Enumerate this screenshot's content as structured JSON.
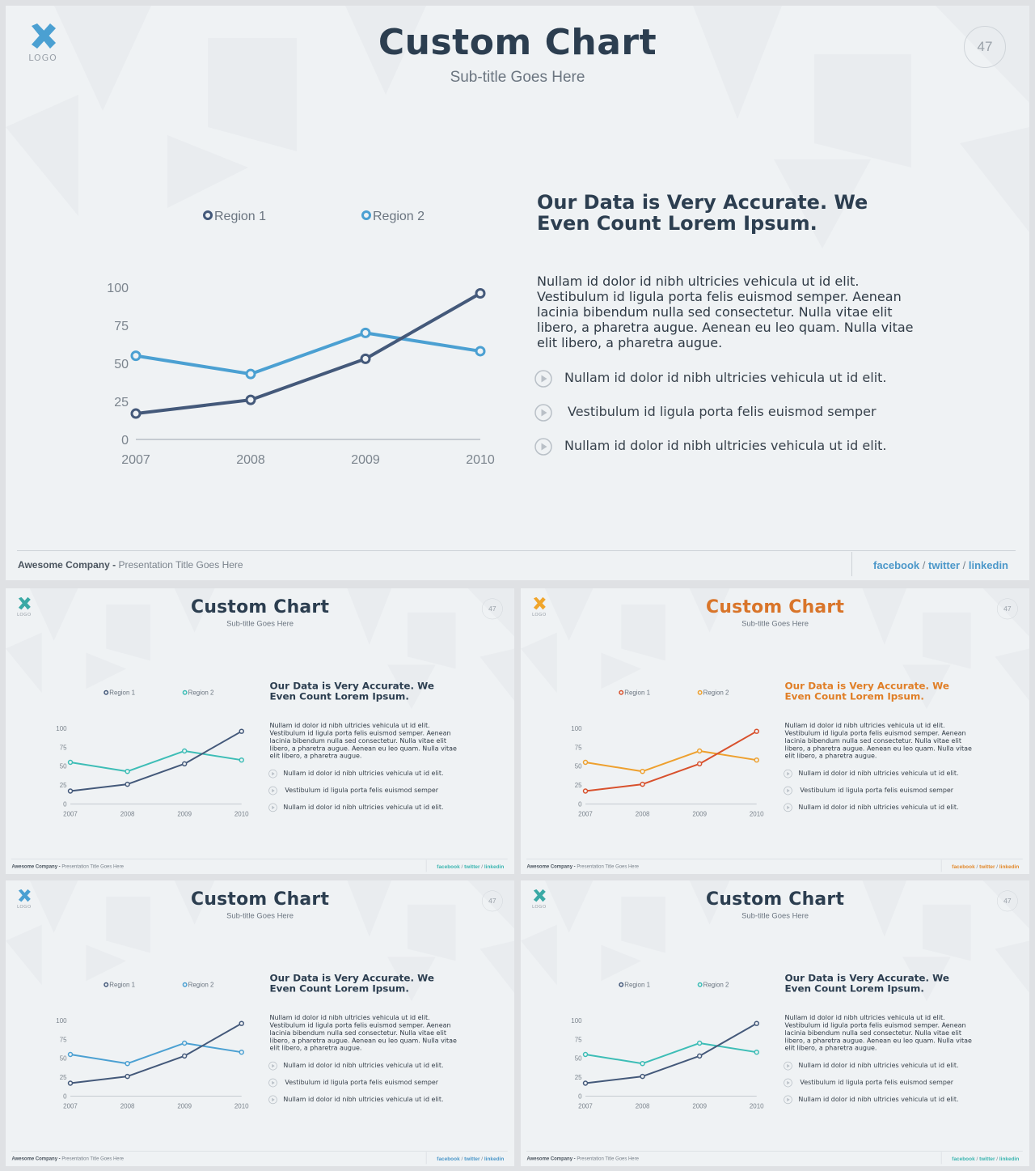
{
  "slide": {
    "title": "Custom Chart",
    "subtitle": "Sub-title Goes Here",
    "logo_text": "LOGO",
    "page_number": "47",
    "heading": "Our Data is Very Accurate. We Even Count Lorem Ipsum.",
    "paragraph": "Nullam id dolor id nibh ultricies vehicula ut id elit. Vestibulum id ligula porta felis euismod semper. Aenean lacinia bibendum nulla sed consectetur. Nulla vitae elit libero, a pharetra augue. Aenean eu leo quam. Nulla vitae elit libero, a pharetra augue.",
    "bullets": [
      "Nullam id dolor id nibh ultricies vehicula ut id elit.",
      "Vestibulum id ligula porta felis euismod semper",
      "Nullam id dolor id nibh ultricies vehicula ut id elit."
    ],
    "footer": {
      "company": "Awesome Company -",
      "presentation": "Presentation Title Goes Here",
      "links": [
        "facebook",
        "twitter",
        "linkedin"
      ],
      "separator": "/"
    }
  },
  "chart_data": {
    "type": "line",
    "x": [
      "2007",
      "2008",
      "2009",
      "2010"
    ],
    "yticks": [
      "0",
      "25",
      "50",
      "75",
      "100"
    ],
    "ylim": [
      0,
      100
    ],
    "legend_position": "top",
    "series": [
      {
        "name": "Region 1",
        "values": [
          17,
          26,
          53,
          96
        ]
      },
      {
        "name": "Region 2",
        "values": [
          55,
          43,
          70,
          58
        ]
      }
    ]
  },
  "themes": [
    {
      "id": "main",
      "r1": "#44597a",
      "r2": "#4ba0d2",
      "title": "#2c3e50",
      "heading": "#2c3e50",
      "logo": "#4ba0d2",
      "links": "#4b97c9"
    },
    {
      "id": "s1",
      "r1": "#44597a",
      "r2": "#3dbdb6",
      "title": "#2c3e50",
      "heading": "#2c3e50",
      "logo": "#3aa9a5",
      "links": "#3bb5b0"
    },
    {
      "id": "s2",
      "r1": "#d8512d",
      "r2": "#eea02e",
      "title": "#d9752a",
      "heading": "#e07e26",
      "logo": "#f0a52b",
      "links": "#e2892c"
    },
    {
      "id": "s3",
      "r1": "#44597a",
      "r2": "#4ba0d2",
      "title": "#2c3e50",
      "heading": "#2c3e50",
      "logo": "#4ba0d2",
      "links": "#4b97c9"
    },
    {
      "id": "s4",
      "r1": "#44597a",
      "r2": "#3dbdb6",
      "title": "#2c3e50",
      "heading": "#2c3e50",
      "logo": "#3aa9a5",
      "links": "#3bb5b0"
    }
  ]
}
